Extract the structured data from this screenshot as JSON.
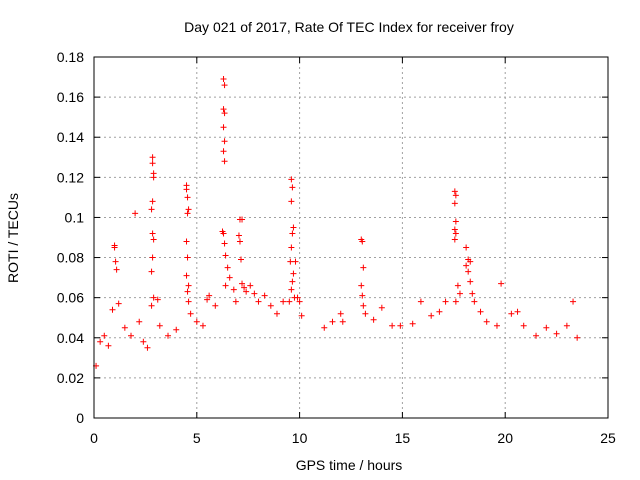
{
  "chart_data": {
    "type": "scatter",
    "title": "Day 021 of 2017, Rate Of TEC Index for receiver froy",
    "xlabel": "GPS time / hours",
    "ylabel": "ROTI / TECUs",
    "xlim": [
      0,
      25
    ],
    "ylim": [
      0,
      0.18
    ],
    "x_ticks": [
      "0",
      "5",
      "10",
      "15",
      "20",
      "25"
    ],
    "y_ticks": [
      "0",
      "0.02",
      "0.04",
      "0.06",
      "0.08",
      "0.1",
      "0.12",
      "0.14",
      "0.16",
      "0.18"
    ],
    "grid": true,
    "marker": "plus",
    "color": "#ff0000",
    "points": [
      [
        0.1,
        0.026
      ],
      [
        0.3,
        0.038
      ],
      [
        0.5,
        0.041
      ],
      [
        0.7,
        0.036
      ],
      [
        0.9,
        0.054
      ],
      [
        1.0,
        0.086
      ],
      [
        1.0,
        0.085
      ],
      [
        1.05,
        0.078
      ],
      [
        1.1,
        0.074
      ],
      [
        1.2,
        0.057
      ],
      [
        1.5,
        0.045
      ],
      [
        1.8,
        0.041
      ],
      [
        2.0,
        0.102
      ],
      [
        2.2,
        0.048
      ],
      [
        2.4,
        0.038
      ],
      [
        2.6,
        0.035
      ],
      [
        2.85,
        0.13
      ],
      [
        2.85,
        0.127
      ],
      [
        2.9,
        0.122
      ],
      [
        2.9,
        0.12
      ],
      [
        2.85,
        0.108
      ],
      [
        2.8,
        0.104
      ],
      [
        2.85,
        0.092
      ],
      [
        2.9,
        0.089
      ],
      [
        2.85,
        0.08
      ],
      [
        2.8,
        0.073
      ],
      [
        2.9,
        0.06
      ],
      [
        2.8,
        0.056
      ],
      [
        3.1,
        0.059
      ],
      [
        3.2,
        0.046
      ],
      [
        3.6,
        0.041
      ],
      [
        4.0,
        0.044
      ],
      [
        4.5,
        0.116
      ],
      [
        4.5,
        0.114
      ],
      [
        4.55,
        0.11
      ],
      [
        4.6,
        0.104
      ],
      [
        4.55,
        0.102
      ],
      [
        4.5,
        0.088
      ],
      [
        4.55,
        0.08
      ],
      [
        4.5,
        0.071
      ],
      [
        4.6,
        0.066
      ],
      [
        4.55,
        0.063
      ],
      [
        4.6,
        0.058
      ],
      [
        4.7,
        0.052
      ],
      [
        5.0,
        0.048
      ],
      [
        5.3,
        0.046
      ],
      [
        5.5,
        0.059
      ],
      [
        5.6,
        0.061
      ],
      [
        5.9,
        0.056
      ],
      [
        6.3,
        0.169
      ],
      [
        6.35,
        0.166
      ],
      [
        6.3,
        0.154
      ],
      [
        6.35,
        0.152
      ],
      [
        6.3,
        0.145
      ],
      [
        6.35,
        0.138
      ],
      [
        6.3,
        0.133
      ],
      [
        6.35,
        0.128
      ],
      [
        6.25,
        0.093
      ],
      [
        6.3,
        0.092
      ],
      [
        6.35,
        0.087
      ],
      [
        6.4,
        0.081
      ],
      [
        6.5,
        0.075
      ],
      [
        6.6,
        0.07
      ],
      [
        6.4,
        0.066
      ],
      [
        6.8,
        0.064
      ],
      [
        6.9,
        0.058
      ],
      [
        7.1,
        0.099
      ],
      [
        7.2,
        0.099
      ],
      [
        7.05,
        0.091
      ],
      [
        7.1,
        0.088
      ],
      [
        7.15,
        0.079
      ],
      [
        7.2,
        0.067
      ],
      [
        7.3,
        0.065
      ],
      [
        7.4,
        0.063
      ],
      [
        7.6,
        0.066
      ],
      [
        7.8,
        0.062
      ],
      [
        8.0,
        0.058
      ],
      [
        8.3,
        0.061
      ],
      [
        8.6,
        0.056
      ],
      [
        8.9,
        0.052
      ],
      [
        9.2,
        0.058
      ],
      [
        9.6,
        0.119
      ],
      [
        9.65,
        0.115
      ],
      [
        9.6,
        0.108
      ],
      [
        9.7,
        0.095
      ],
      [
        9.65,
        0.092
      ],
      [
        9.6,
        0.085
      ],
      [
        9.55,
        0.078
      ],
      [
        9.7,
        0.072
      ],
      [
        9.8,
        0.078
      ],
      [
        9.65,
        0.068
      ],
      [
        9.6,
        0.064
      ],
      [
        9.75,
        0.06
      ],
      [
        9.9,
        0.06
      ],
      [
        10.0,
        0.058
      ],
      [
        9.5,
        0.058
      ],
      [
        10.1,
        0.051
      ],
      [
        11.2,
        0.045
      ],
      [
        11.6,
        0.048
      ],
      [
        12.0,
        0.052
      ],
      [
        12.1,
        0.048
      ],
      [
        13.0,
        0.089
      ],
      [
        13.05,
        0.088
      ],
      [
        13.1,
        0.075
      ],
      [
        13.0,
        0.066
      ],
      [
        13.05,
        0.061
      ],
      [
        13.1,
        0.056
      ],
      [
        13.2,
        0.052
      ],
      [
        13.6,
        0.049
      ],
      [
        14.0,
        0.055
      ],
      [
        14.5,
        0.046
      ],
      [
        14.9,
        0.046
      ],
      [
        15.5,
        0.047
      ],
      [
        15.9,
        0.058
      ],
      [
        16.4,
        0.051
      ],
      [
        16.8,
        0.053
      ],
      [
        17.1,
        0.058
      ],
      [
        17.55,
        0.113
      ],
      [
        17.6,
        0.111
      ],
      [
        17.55,
        0.107
      ],
      [
        17.6,
        0.098
      ],
      [
        17.55,
        0.094
      ],
      [
        17.6,
        0.092
      ],
      [
        17.55,
        0.089
      ],
      [
        17.7,
        0.066
      ],
      [
        17.8,
        0.062
      ],
      [
        17.6,
        0.058
      ],
      [
        18.1,
        0.085
      ],
      [
        18.2,
        0.079
      ],
      [
        18.3,
        0.078
      ],
      [
        18.1,
        0.076
      ],
      [
        18.2,
        0.073
      ],
      [
        18.3,
        0.068
      ],
      [
        18.4,
        0.062
      ],
      [
        18.5,
        0.058
      ],
      [
        18.8,
        0.053
      ],
      [
        19.1,
        0.048
      ],
      [
        19.6,
        0.046
      ],
      [
        19.8,
        0.067
      ],
      [
        20.3,
        0.052
      ],
      [
        20.6,
        0.053
      ],
      [
        20.9,
        0.046
      ],
      [
        21.5,
        0.041
      ],
      [
        22.0,
        0.045
      ],
      [
        22.5,
        0.042
      ],
      [
        23.0,
        0.046
      ],
      [
        23.3,
        0.058
      ],
      [
        23.5,
        0.04
      ]
    ]
  }
}
